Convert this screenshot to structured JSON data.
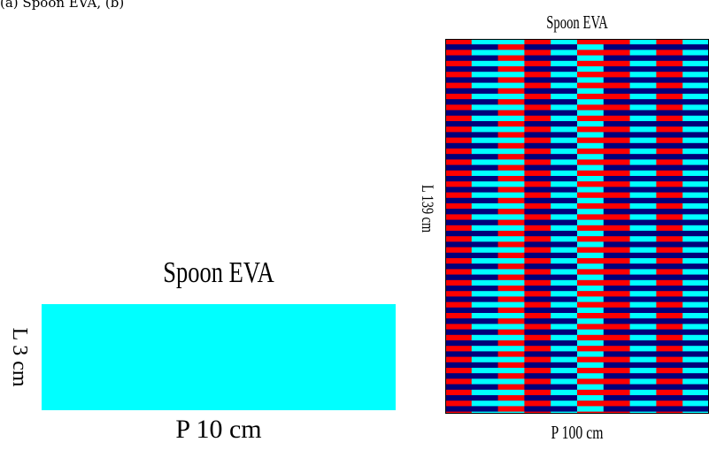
{
  "caption": "(a) Spoon EVA, (b)",
  "left_panel": {
    "title": "Spoon EVA",
    "length_label": "L 3 cm",
    "width_label": "P 10 cm",
    "fill_color": "#00ffff"
  },
  "right_panel": {
    "title": "Spoon EVA",
    "length_label": "L 139 cm",
    "width_label": "P 100 cm",
    "colors": {
      "red": "#ff0000",
      "navy": "#00007a",
      "cyan": "#00ffff"
    },
    "column_pattern": [
      "rn",
      "cn",
      "cr",
      "rn",
      "cn",
      "rc",
      "rn",
      "cn",
      "rn",
      "cn"
    ]
  }
}
